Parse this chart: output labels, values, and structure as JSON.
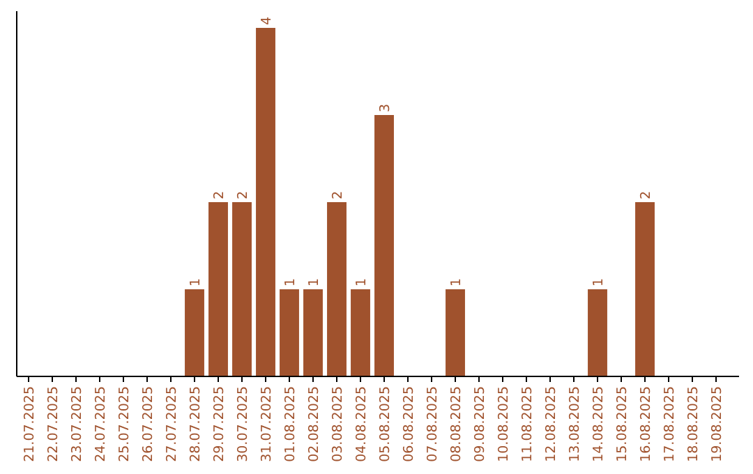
{
  "chart_data": {
    "type": "bar",
    "categories": [
      "21.07.2025",
      "22.07.2025",
      "23.07.2025",
      "24.07.2025",
      "25.07.2025",
      "26.07.2025",
      "27.07.2025",
      "28.07.2025",
      "29.07.2025",
      "30.07.2025",
      "31.07.2025",
      "01.08.2025",
      "02.08.2025",
      "03.08.2025",
      "04.08.2025",
      "05.08.2025",
      "06.08.2025",
      "07.08.2025",
      "08.08.2025",
      "09.08.2025",
      "10.08.2025",
      "11.08.2025",
      "12.08.2025",
      "13.08.2025",
      "14.08.2025",
      "15.08.2025",
      "16.08.2025",
      "17.08.2025",
      "18.08.2025",
      "19.08.2025"
    ],
    "values": [
      0,
      0,
      0,
      0,
      0,
      0,
      0,
      1,
      2,
      2,
      4,
      1,
      1,
      2,
      1,
      3,
      0,
      0,
      1,
      0,
      0,
      0,
      0,
      0,
      1,
      0,
      2,
      0,
      0,
      0
    ],
    "value_labels": [
      null,
      null,
      null,
      null,
      null,
      null,
      null,
      "1",
      "2",
      "2",
      "4",
      "1",
      "1",
      "2",
      "1",
      "3",
      null,
      null,
      "1",
      null,
      null,
      null,
      null,
      null,
      "1",
      null,
      "2",
      null,
      null,
      null
    ],
    "color": "#a0522d",
    "grid": false
  }
}
